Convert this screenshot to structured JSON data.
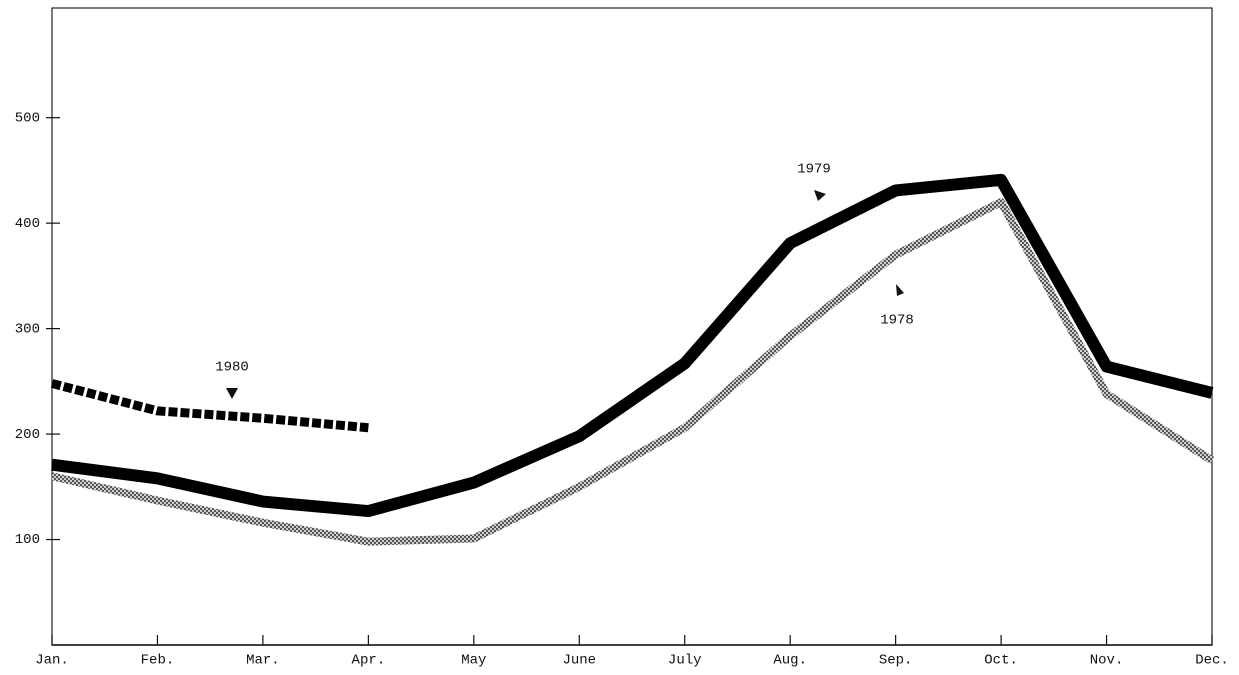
{
  "chart_data": {
    "type": "line",
    "categories": [
      "Jan.",
      "Feb.",
      "Mar.",
      "Apr.",
      "May",
      "June",
      "July",
      "Aug.",
      "Sep.",
      "Oct.",
      "Nov.",
      "Dec."
    ],
    "series": [
      {
        "name": "1978",
        "color": "#8a8a8a",
        "style": "hatched",
        "values": [
          160,
          137,
          116,
          98,
          101,
          150,
          206,
          293,
          370,
          420,
          238,
          175
        ]
      },
      {
        "name": "1979",
        "color": "#000000",
        "style": "solid",
        "values": [
          171,
          158,
          136,
          127,
          154,
          198,
          267,
          381,
          431,
          441,
          264,
          239
        ]
      },
      {
        "name": "1980",
        "color": "#000000",
        "style": "diamonds",
        "values": [
          248,
          222,
          215,
          206,
          null,
          null,
          null,
          null,
          null,
          null,
          null,
          null
        ]
      }
    ],
    "ylim": [
      0,
      604
    ],
    "yticks": [
      100,
      200,
      300,
      400,
      500
    ]
  }
}
